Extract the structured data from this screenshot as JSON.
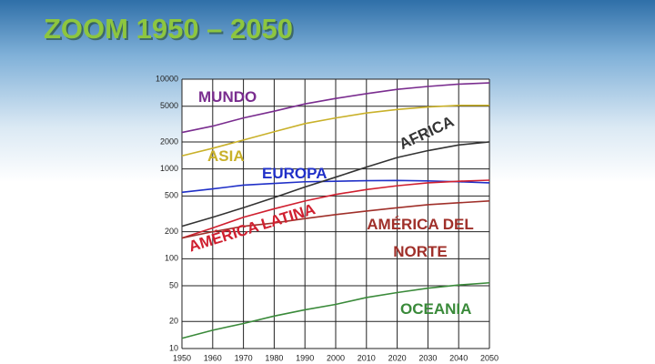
{
  "chart_data": {
    "type": "line",
    "title": "ZOOM 1950 – 2050",
    "x": [
      1950,
      1960,
      1970,
      1980,
      1990,
      2000,
      2010,
      2020,
      2030,
      2040,
      2050
    ],
    "xlim": [
      1950,
      2050
    ],
    "xticks": [
      1950,
      1960,
      1970,
      1980,
      1990,
      2000,
      2010,
      2020,
      2030,
      2040,
      2050
    ],
    "ylim": [
      10,
      10000
    ],
    "yticks": [
      10,
      20,
      50,
      100,
      200,
      500,
      1000,
      2000,
      5000,
      10000
    ],
    "log_y": true,
    "grid": true,
    "series": [
      {
        "name": "MUNDO",
        "color": "#7a2d8f",
        "values": [
          2550,
          3000,
          3700,
          4400,
          5300,
          6100,
          6900,
          7700,
          8300,
          8800,
          9100
        ]
      },
      {
        "name": "ASIA",
        "color": "#c9b12a",
        "values": [
          1400,
          1700,
          2100,
          2600,
          3200,
          3700,
          4200,
          4600,
          4900,
          5100,
          5100
        ]
      },
      {
        "name": "EUROPA",
        "color": "#2030c8",
        "values": [
          550,
          600,
          660,
          690,
          720,
          730,
          740,
          745,
          735,
          720,
          700
        ]
      },
      {
        "name": "AFRICA",
        "color": "#333333",
        "values": [
          230,
          290,
          370,
          480,
          630,
          810,
          1050,
          1340,
          1600,
          1850,
          2000
        ]
      },
      {
        "name": "AMÉRICA LATINA",
        "color": "#d02030",
        "values": [
          170,
          220,
          290,
          360,
          440,
          520,
          590,
          650,
          700,
          730,
          750
        ]
      },
      {
        "name": "AMÉRICA DEL NORTE",
        "color": "#a0302a",
        "values": [
          170,
          200,
          230,
          250,
          280,
          310,
          340,
          370,
          400,
          420,
          440
        ]
      },
      {
        "name": "OCEANIA",
        "color": "#3a8a3a",
        "values": [
          13,
          16,
          19,
          23,
          27,
          31,
          37,
          42,
          47,
          51,
          54
        ]
      }
    ]
  }
}
